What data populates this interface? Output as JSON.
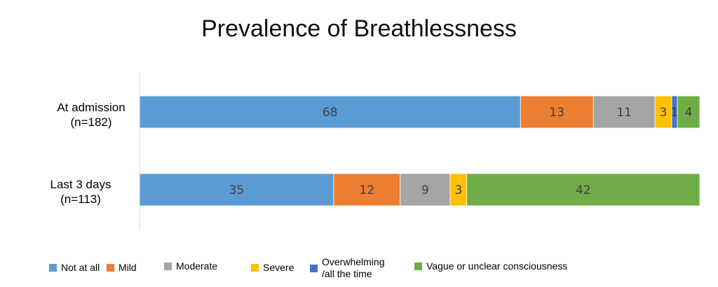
{
  "chart_data": {
    "type": "bar",
    "orientation": "horizontal",
    "stacked": true,
    "title": "Prevalence of Breathlessness",
    "categories": [
      "At admission\n(n=182)",
      "Last 3 days\n(n=113)"
    ],
    "series": [
      {
        "name": "Not at all",
        "color": "#5B9BD5",
        "values": [
          68,
          35
        ]
      },
      {
        "name": "Mild",
        "color": "#ED7D31",
        "values": [
          13,
          12
        ]
      },
      {
        "name": "Moderate",
        "color": "#A5A5A5",
        "values": [
          11,
          9
        ]
      },
      {
        "name": "Severe",
        "color": "#FFC000",
        "values": [
          3,
          3
        ]
      },
      {
        "name": "Overwhelming\n/all the time",
        "color": "#4472C4",
        "values": [
          1,
          0
        ]
      },
      {
        "name": "Vague or unclear consciousness",
        "color": "#70AD47",
        "values": [
          4,
          42
        ]
      }
    ],
    "data_labels": [
      [
        "68",
        "13",
        "11",
        "3",
        "1",
        "4"
      ],
      [
        "35",
        "12",
        "9",
        "3",
        "",
        "42"
      ]
    ],
    "legend_position": "bottom",
    "grid": false
  }
}
